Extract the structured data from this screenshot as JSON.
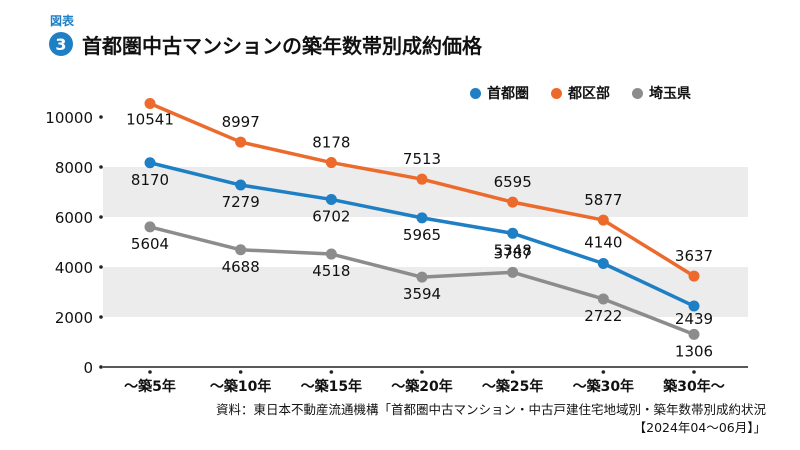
{
  "figure_label": "図表",
  "figure_number": "3",
  "chart_data": {
    "type": "line",
    "title": "首都圏中古マンションの築年数帯別成約価格",
    "categories": [
      "～築5年",
      "～築10年",
      "～築15年",
      "～築20年",
      "～築25年",
      "～築30年",
      "築30年～"
    ],
    "y_ticks": [
      "0",
      "2000",
      "4000",
      "6000",
      "8000",
      "10000"
    ],
    "ylim": [
      0,
      10000
    ],
    "legend_position": "top-right",
    "series": [
      {
        "name": "首都圏",
        "color": "#1f7fc4",
        "values": [
          8170,
          7279,
          6702,
          5965,
          5348,
          4140,
          2439
        ],
        "labels": [
          "8170",
          "7279",
          "6702",
          "5965",
          "5348",
          "4140",
          "2439"
        ]
      },
      {
        "name": "都区部",
        "color": "#ec6a2c",
        "values": [
          10541,
          8997,
          8178,
          7513,
          6595,
          5877,
          3637
        ],
        "labels": [
          "10541",
          "8997",
          "8178",
          "7513",
          "6595",
          "5877",
          "3637"
        ]
      },
      {
        "name": "埼玉県",
        "color": "#8c8c8c",
        "values": [
          5604,
          4688,
          4518,
          3594,
          3787,
          2722,
          1306
        ],
        "labels": [
          "5604",
          "4688",
          "4518",
          "3594",
          "3787",
          "2722",
          "1306"
        ]
      }
    ]
  },
  "source": {
    "line1": "資料：東日本不動産流通機構「首都圏中古マンション・中古戸建住宅地域別・築年数帯別成約状況",
    "line2": "【2024年04～06月】」"
  }
}
